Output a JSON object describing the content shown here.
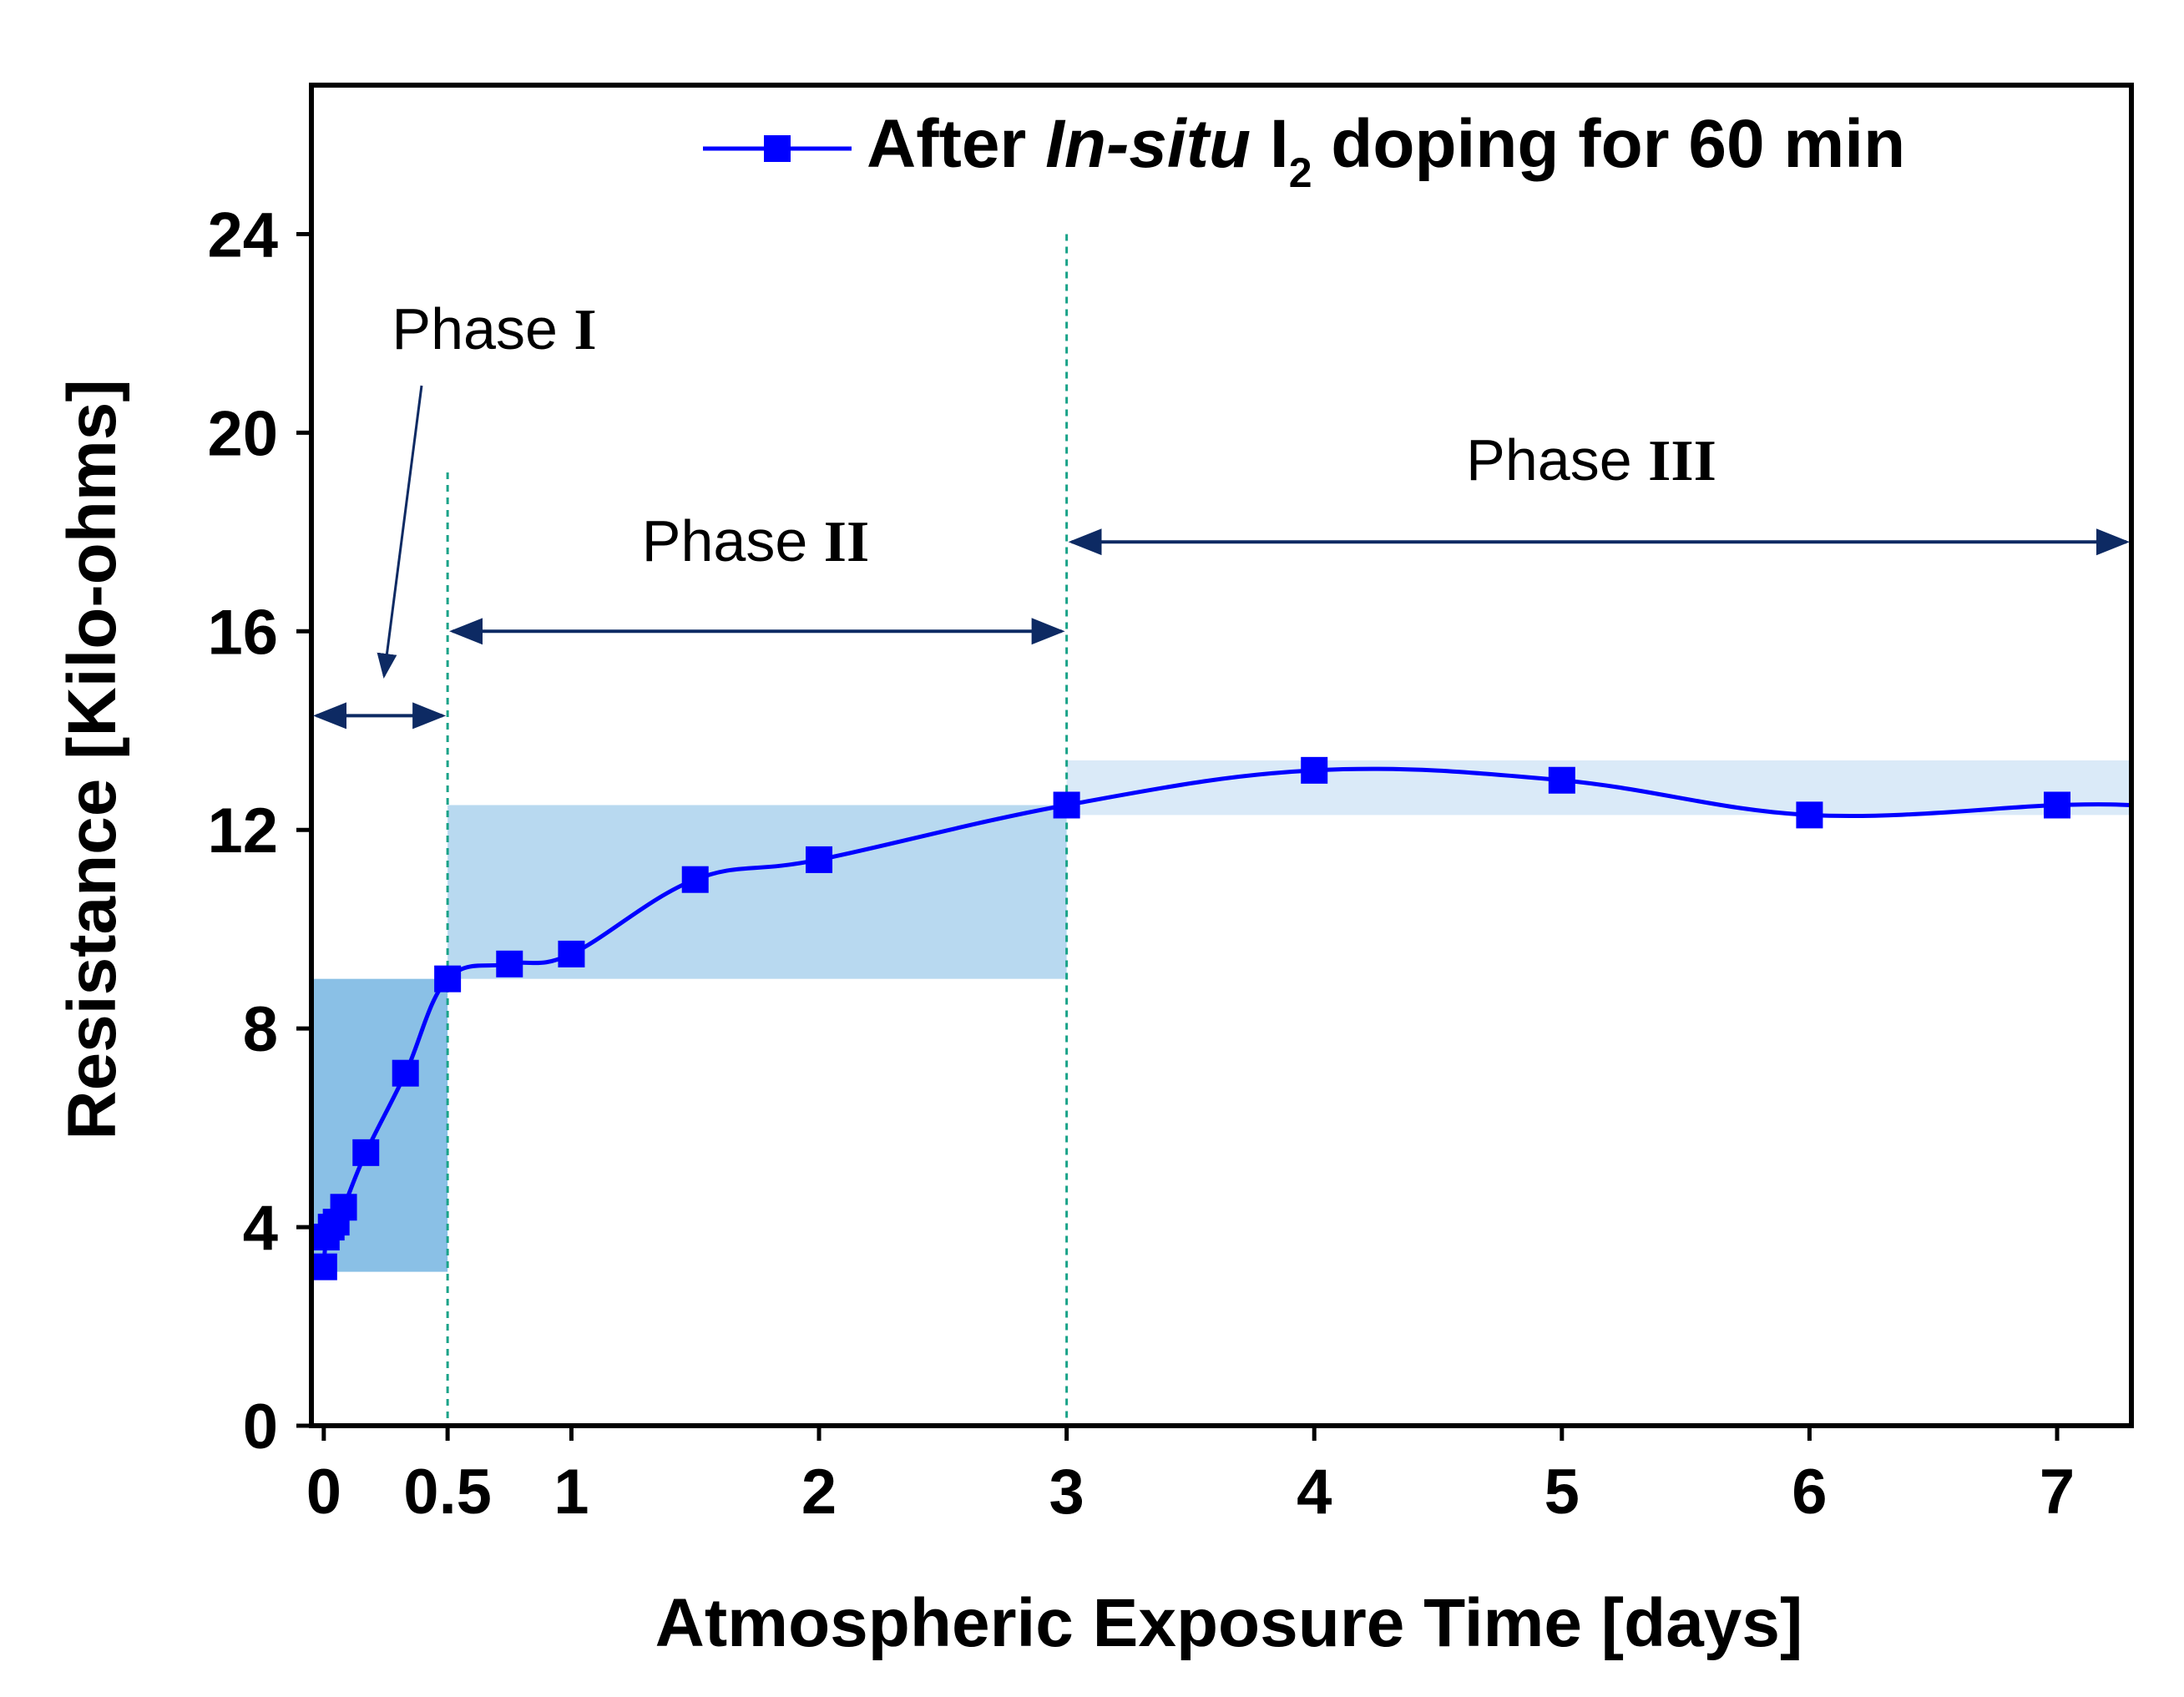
{
  "chart_data": {
    "type": "line",
    "xlabel": "Atmospheric Exposure Time [days]",
    "ylabel": "Resistance [Kilo-ohms]",
    "xlim": [
      -0.05,
      7.3
    ],
    "ylim": [
      0,
      27
    ],
    "x_ticks": [
      0,
      0.5,
      1,
      2,
      3,
      4,
      5,
      6,
      7
    ],
    "x_tick_labels": [
      "0",
      "0.5",
      "1",
      "2",
      "3",
      "4",
      "5",
      "6",
      "7"
    ],
    "y_ticks": [
      0,
      4,
      8,
      12,
      16,
      20,
      24
    ],
    "y_tick_labels": [
      "0",
      "4",
      "8",
      "12",
      "16",
      "20",
      "24"
    ],
    "legend": {
      "position": "top-right",
      "text_before": "After ",
      "text_italic": "In-situ",
      "text_main": " I",
      "text_sub": "2",
      "text_after": " doping for 60 min"
    },
    "series": [
      {
        "name": "After In-situ I2 doping for 60 min",
        "color": "#0000ff",
        "marker": "square",
        "x": [
          0,
          0.01,
          0.03,
          0.05,
          0.08,
          0.17,
          0.33,
          0.5,
          0.75,
          1,
          1.5,
          2,
          3,
          4,
          5,
          6,
          7,
          7.3
        ],
        "y": [
          3.2,
          3.8,
          4.0,
          4.1,
          4.4,
          5.5,
          7.1,
          9.0,
          9.3,
          9.5,
          11.0,
          11.4,
          12.5,
          13.2,
          13.0,
          12.3,
          12.5,
          12.5
        ],
        "marker_x": [
          0,
          0.01,
          0.03,
          0.05,
          0.08,
          0.17,
          0.33,
          0.5,
          0.75,
          1,
          1.5,
          2,
          3,
          4,
          5,
          6,
          7
        ],
        "marker_y": [
          3.2,
          3.8,
          4.0,
          4.1,
          4.4,
          5.5,
          7.1,
          9.0,
          9.3,
          9.5,
          11.0,
          11.4,
          12.5,
          13.2,
          13.0,
          12.3,
          12.5
        ]
      }
    ],
    "shaded_regions": [
      {
        "x0": -0.05,
        "x1": 0.5,
        "y0": 3.1,
        "y1": 9.0,
        "color": "#8ac0e6"
      },
      {
        "x0": 0.5,
        "x1": 3.0,
        "y0": 9.0,
        "y1": 12.5,
        "color": "#b8d9f0"
      },
      {
        "x0": 3.0,
        "x1": 7.3,
        "y0": 12.3,
        "y1": 13.4,
        "color": "#daeaf8"
      }
    ],
    "dashed_lines": [
      0.5,
      3.0
    ],
    "phases": [
      {
        "label": "Phase ",
        "roman": "I",
        "x0": -0.05,
        "x1": 0.5,
        "arrow_y": 14.3
      },
      {
        "label": "Phase ",
        "roman": "II",
        "x0": 0.5,
        "x1": 3.0,
        "arrow_y": 16.0
      },
      {
        "label": "Phase ",
        "roman": "III",
        "x0": 3.0,
        "x1": 7.3,
        "arrow_y": 17.8
      }
    ],
    "colors": {
      "series": "#0000ff",
      "arrow": "#0d2a63",
      "dashed": "#1aa389",
      "axis": "#000000"
    }
  }
}
